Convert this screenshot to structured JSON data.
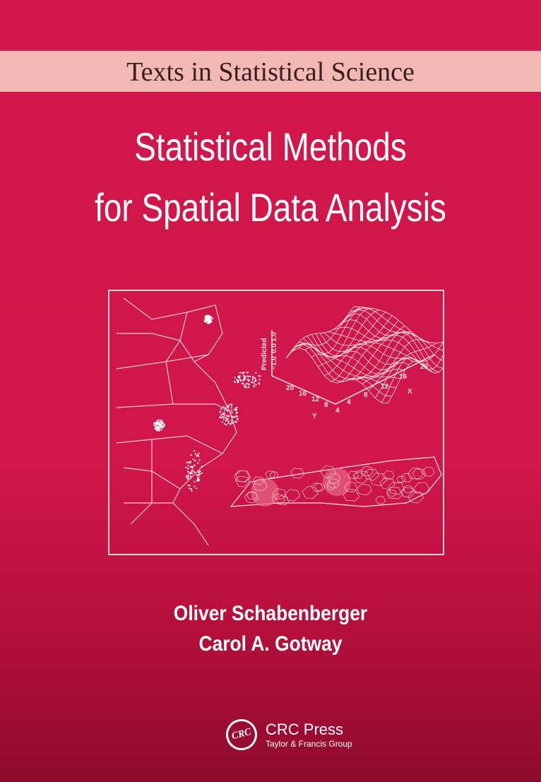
{
  "cover": {
    "series": "Texts in Statistical Science",
    "title_line1": "Statistical Methods",
    "title_line2": "for Spatial Data Analysis",
    "authors": [
      "Oliver Schabenberger",
      "Carol A. Gotway"
    ],
    "publisher": {
      "logo_text": "CRC",
      "name": "CRC Press",
      "group": "Taylor & Francis Group"
    },
    "colors": {
      "background": "#d0164a",
      "band": "#f2b9b4",
      "series_text": "#3b1d1f",
      "text": "#ffffff"
    }
  },
  "figure": {
    "surface_plot": {
      "z_label": "Predicted",
      "z_ticks": [
        "−1.0",
        "0.0",
        "1.0"
      ],
      "y_label": "Y",
      "y_ticks": [
        "20",
        "16",
        "12",
        "8",
        "4"
      ],
      "x_label": "X",
      "x_ticks": [
        "4",
        "8",
        "12",
        "16",
        "20"
      ]
    }
  }
}
